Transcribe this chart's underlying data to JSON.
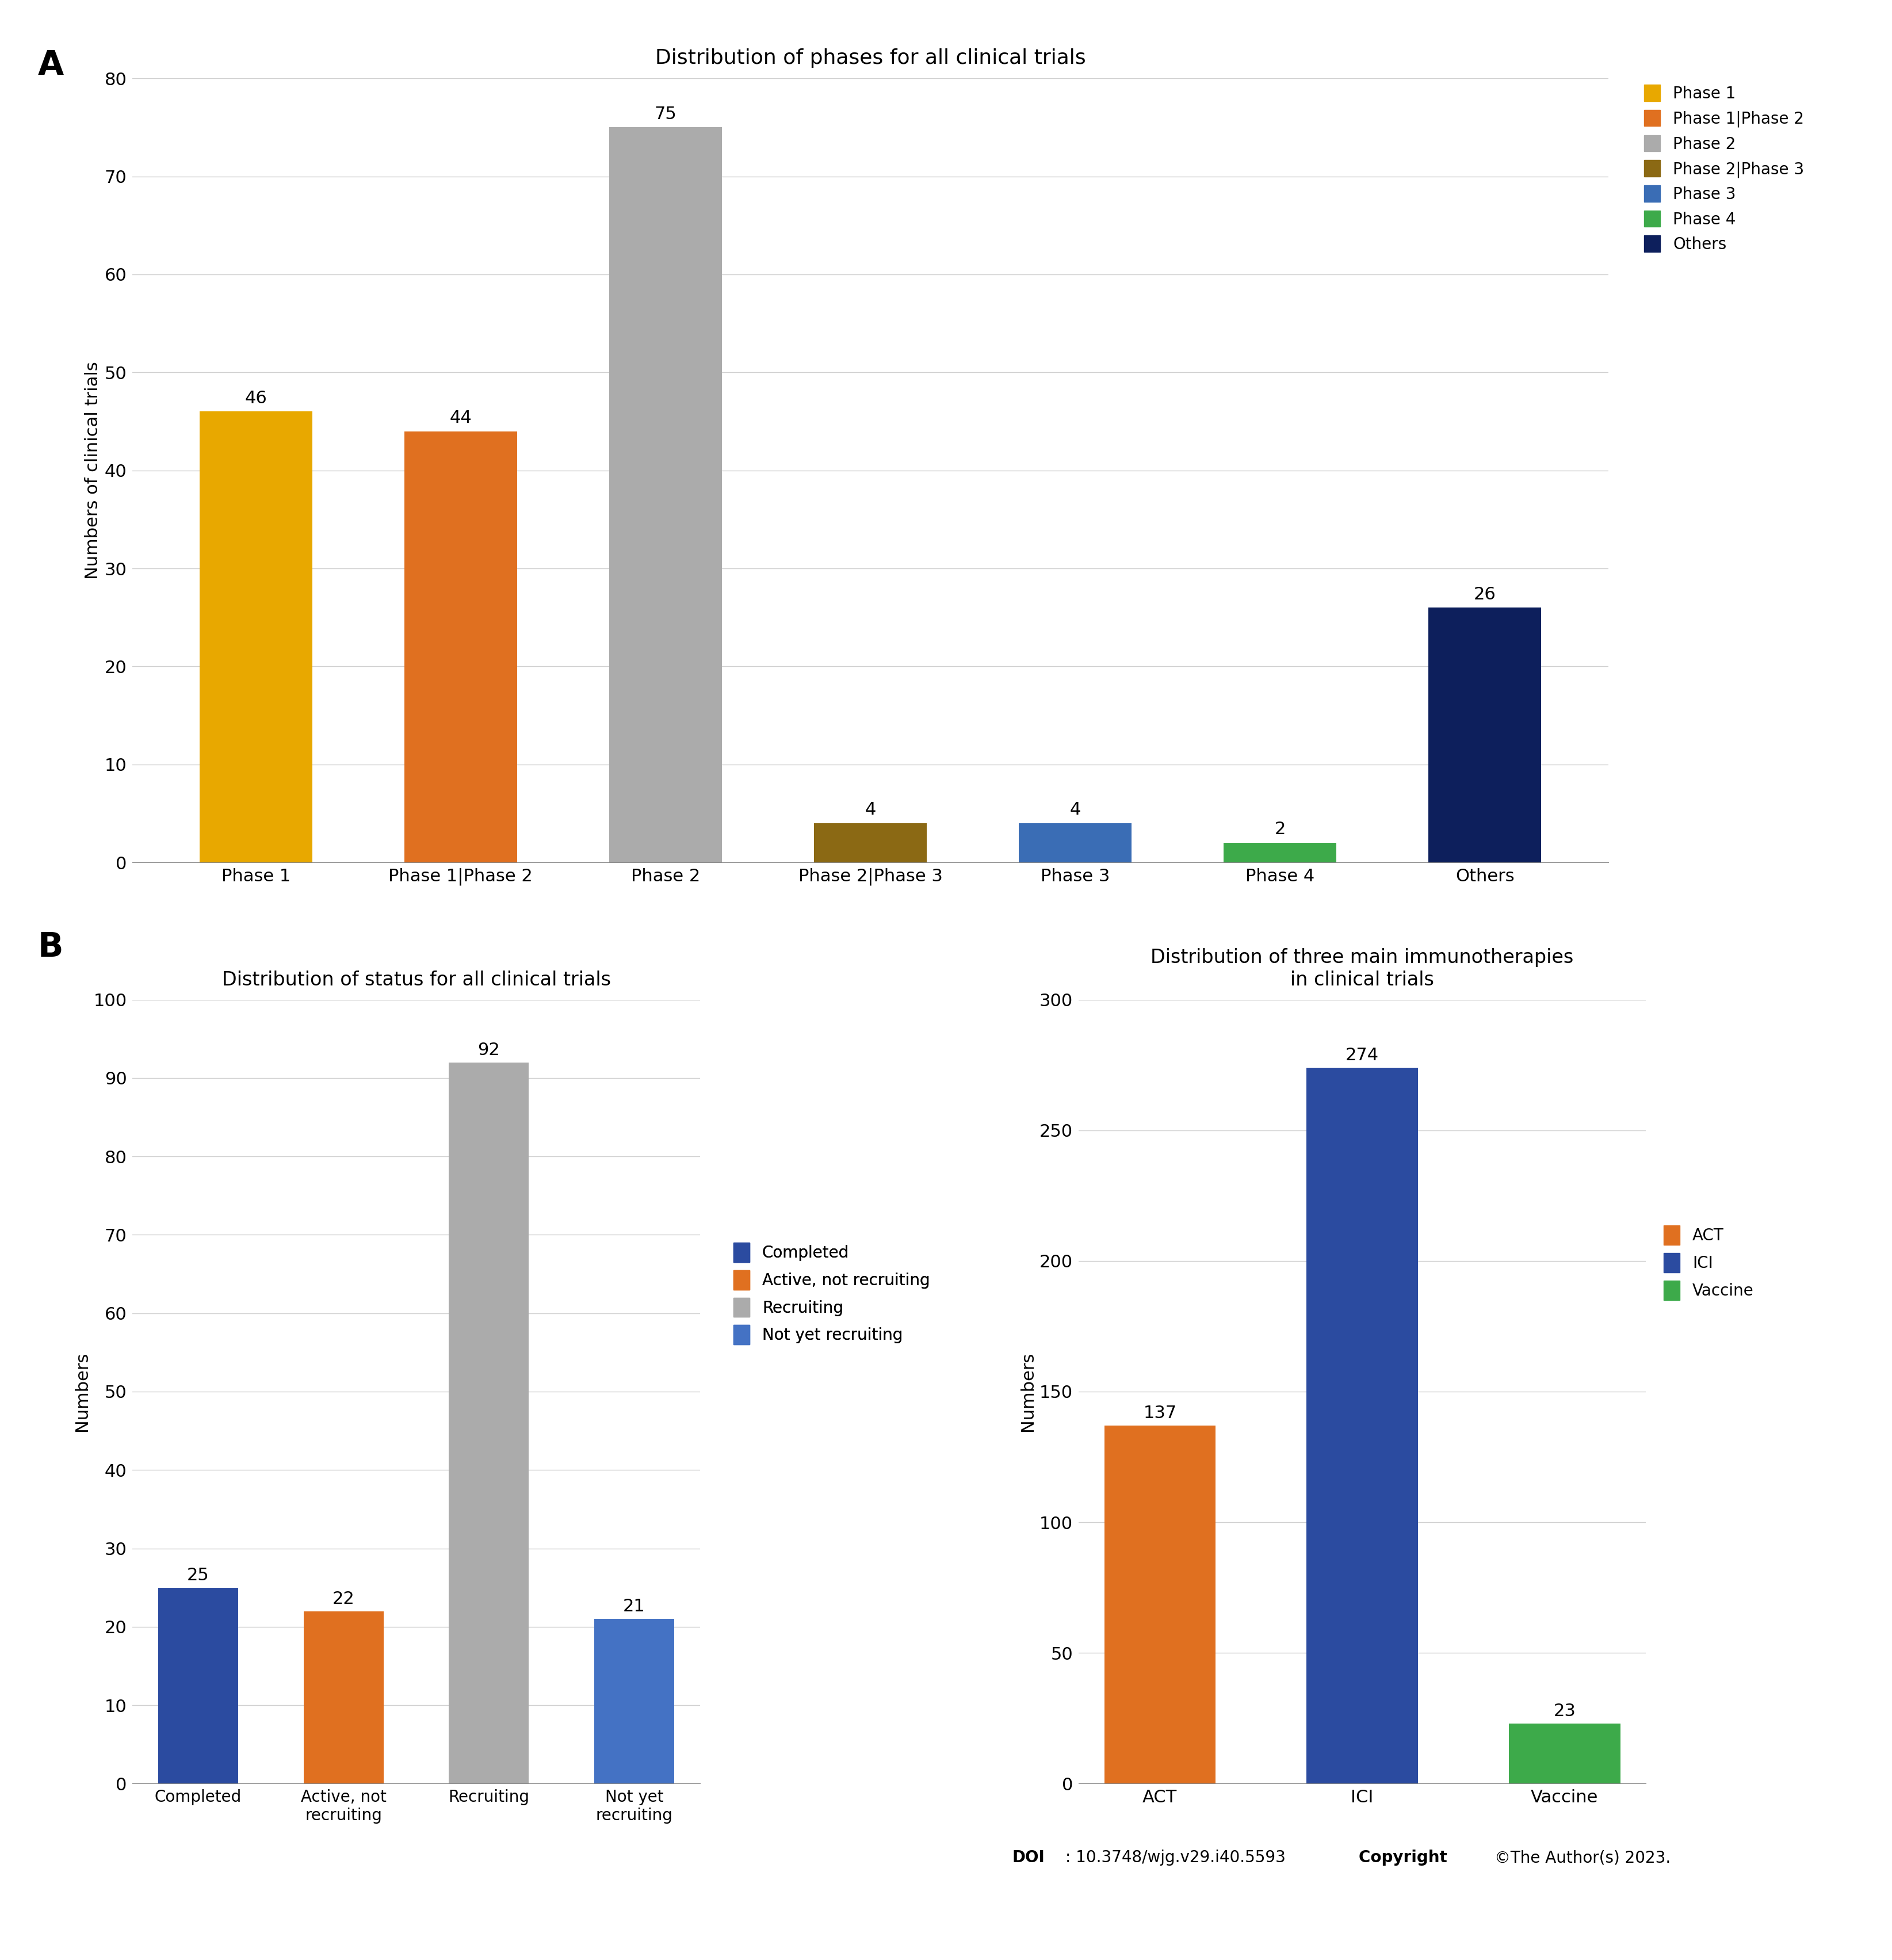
{
  "panel_A": {
    "title": "Distribution of phases for all clinical trials",
    "categories": [
      "Phase 1",
      "Phase 1|Phase 2",
      "Phase 2",
      "Phase 2|Phase 3",
      "Phase 3",
      "Phase 4",
      "Others"
    ],
    "values": [
      46,
      44,
      75,
      4,
      4,
      2,
      26
    ],
    "colors": [
      "#E8A800",
      "#E07020",
      "#ABABAB",
      "#8B6914",
      "#3A6DB5",
      "#3DAA4A",
      "#0D1F5C"
    ],
    "ylabel": "Numbers of clinical trials",
    "ylim": [
      0,
      80
    ],
    "yticks": [
      0,
      10,
      20,
      30,
      40,
      50,
      60,
      70,
      80
    ],
    "legend_labels": [
      "Phase 1",
      "Phase 1|Phase 2",
      "Phase 2",
      "Phase 2|Phase 3",
      "Phase 3",
      "Phase 4",
      "Others"
    ],
    "legend_colors": [
      "#E8A800",
      "#E07020",
      "#ABABAB",
      "#8B6914",
      "#3A6DB5",
      "#3DAA4A",
      "#0D1F5C"
    ]
  },
  "panel_B_left": {
    "title": "Distribution of status for all clinical trials",
    "categories": [
      "Completed",
      "Active, not\nrecruiting",
      "Recruiting",
      "Not yet\nrecruiting"
    ],
    "values": [
      25,
      22,
      92,
      21
    ],
    "colors": [
      "#2B4BA0",
      "#E07020",
      "#ABABAB",
      "#4472C4"
    ],
    "ylabel": "Numbers",
    "ylim": [
      0,
      100
    ],
    "yticks": [
      0,
      10,
      20,
      30,
      40,
      50,
      60,
      70,
      80,
      90,
      100
    ],
    "legend_labels": [
      "Completed",
      "Active, not recruiting",
      "Recruiting",
      "Not yet recruiting"
    ],
    "legend_colors": [
      "#2B4BA0",
      "#E07020",
      "#ABABAB",
      "#4472C4"
    ]
  },
  "panel_B_right": {
    "title": "Distribution of three main immunotherapies\nin clinical trials",
    "categories": [
      "ACT",
      "ICI",
      "Vaccine"
    ],
    "values": [
      137,
      274,
      23
    ],
    "colors": [
      "#E07020",
      "#2B4BA0",
      "#3DAA4A"
    ],
    "ylabel": "Numbers",
    "ylim": [
      0,
      300
    ],
    "yticks": [
      0,
      50,
      100,
      150,
      200,
      250,
      300
    ],
    "legend_labels": [
      "ACT",
      "ICI",
      "Vaccine"
    ],
    "legend_colors": [
      "#E07020",
      "#2B4BA0",
      "#3DAA4A"
    ]
  },
  "doi_text": "DOI",
  "doi_value": ": 10.3748/wjg.v29.i40.5593 ",
  "copyright_text": "Copyright ",
  "copyright_value": "©The Author(s) 2023.",
  "background_color": "#FFFFFF",
  "grid_color": "#D0D0D0"
}
